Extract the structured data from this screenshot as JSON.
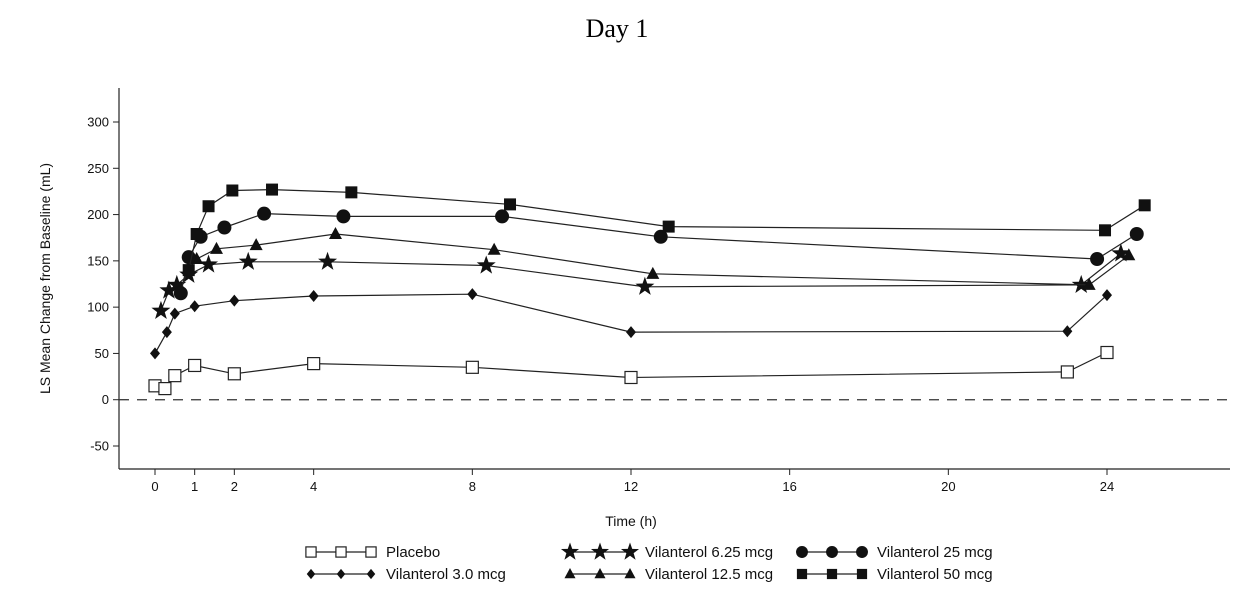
{
  "page": {
    "title": "Day 1"
  },
  "chart_data": {
    "type": "line",
    "title": "Day 1",
    "xlabel": "Time (h)",
    "ylabel": "LS Mean Change from Baseline (mL)",
    "xlim": [
      -1.5,
      25.5
    ],
    "ylim": [
      -75,
      340
    ],
    "xticks": [
      0,
      1,
      2,
      4,
      8,
      12,
      16,
      20,
      24
    ],
    "yticks": [
      -50,
      0,
      50,
      100,
      150,
      200,
      250,
      300
    ],
    "reference_line": {
      "y": 0,
      "style": "dashed"
    },
    "grid": false,
    "legend_position": "bottom",
    "series": [
      {
        "name": "Placebo",
        "marker": "square-open",
        "x": [
          0.0,
          0.25,
          0.5,
          1.0,
          2.0,
          4.0,
          8.0,
          12.0,
          23.0,
          24.0
        ],
        "y": [
          15,
          12,
          26,
          37,
          28,
          39,
          35,
          24,
          30,
          51
        ]
      },
      {
        "name": "Vilanterol 3.0 mcg",
        "marker": "diamond",
        "x": [
          0.0,
          0.3,
          0.5,
          1.0,
          2.0,
          4.0,
          8.0,
          12.0,
          23.0,
          24.0
        ],
        "y": [
          50,
          73,
          93,
          101,
          107,
          112,
          114,
          73,
          74,
          113
        ]
      },
      {
        "name": "Vilanterol 6.25 mcg",
        "marker": "star",
        "x": [
          0.15,
          0.35,
          0.55,
          0.85,
          1.35,
          2.35,
          4.35,
          8.35,
          12.35,
          23.35,
          24.35
        ],
        "y": [
          96,
          118,
          124,
          135,
          146,
          149,
          149,
          145,
          122,
          124,
          158
        ]
      },
      {
        "name": "Vilanterol 12.5 mcg",
        "marker": "triangle",
        "x": [
          0.65,
          0.85,
          1.05,
          1.55,
          2.55,
          4.55,
          8.55,
          12.55,
          23.55,
          24.55
        ],
        "y": [
          120,
          142,
          152,
          163,
          167,
          179,
          162,
          136,
          124,
          156
        ]
      },
      {
        "name": "Vilanterol 25 mcg",
        "marker": "circle",
        "x": [
          0.65,
          0.85,
          1.15,
          1.75,
          2.75,
          4.75,
          8.75,
          12.75,
          23.75,
          24.75
        ],
        "y": [
          115,
          154,
          176,
          186,
          201,
          198,
          198,
          176,
          152,
          179
        ]
      },
      {
        "name": "Vilanterol 50 mcg",
        "marker": "square",
        "x": [
          0.85,
          1.05,
          1.35,
          1.95,
          2.95,
          4.95,
          8.95,
          12.95,
          23.95,
          24.95
        ],
        "y": [
          140,
          179,
          209,
          226,
          227,
          224,
          211,
          187,
          183,
          210
        ]
      }
    ]
  }
}
